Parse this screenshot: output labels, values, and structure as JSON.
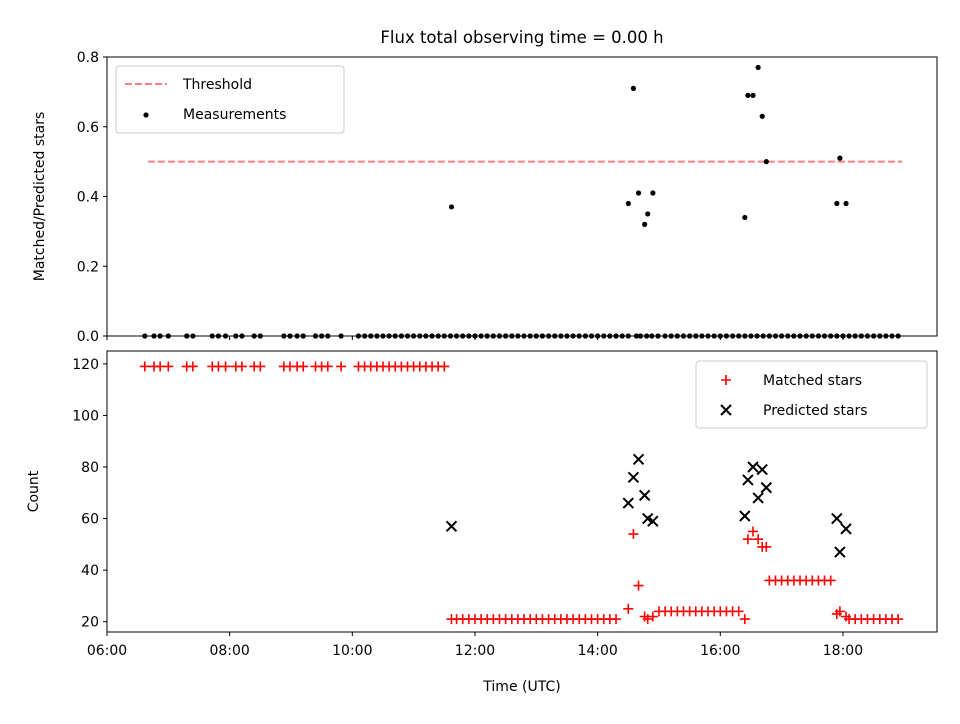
{
  "chart_data": [
    {
      "type": "scatter",
      "title": "Flux total observing time = 0.00 h",
      "xlabel": "",
      "ylabel": "Matched/Predicted stars",
      "ylim": [
        0,
        0.8
      ],
      "yticks": [
        "0.0",
        "0.2",
        "0.4",
        "0.6",
        "0.8"
      ],
      "legend": {
        "position": "top-left",
        "entries": [
          "Threshold",
          "Measurements"
        ]
      },
      "threshold": {
        "name": "Threshold",
        "value": 0.5,
        "x_start": "06:40",
        "x_end": "18:58",
        "color": "#ff7f7f"
      },
      "series": [
        {
          "name": "Measurements",
          "color": "#000000",
          "x": [
            "06:37",
            "06:46",
            "06:52",
            "07:00",
            "07:18",
            "07:24",
            "07:43",
            "07:49",
            "07:56",
            "08:06",
            "08:12",
            "08:24",
            "08:30",
            "08:53",
            "08:59",
            "09:06",
            "09:12",
            "09:24",
            "09:30",
            "09:36",
            "09:49",
            "10:06",
            "10:12",
            "10:18",
            "10:24",
            "10:30",
            "10:36",
            "10:42",
            "10:48",
            "10:54",
            "11:00",
            "11:06",
            "11:12",
            "11:18",
            "11:24",
            "11:30",
            "11:36",
            "11:42",
            "11:48",
            "11:54",
            "12:00",
            "12:06",
            "12:12",
            "12:18",
            "12:24",
            "12:30",
            "12:36",
            "12:42",
            "12:48",
            "12:54",
            "13:00",
            "13:06",
            "13:12",
            "13:18",
            "13:24",
            "13:30",
            "13:36",
            "13:42",
            "13:48",
            "13:54",
            "14:00",
            "14:06",
            "14:12",
            "14:18",
            "14:24",
            "14:30",
            "14:38",
            "14:42",
            "14:48",
            "14:53",
            "14:59",
            "15:06",
            "15:12",
            "15:18",
            "15:24",
            "15:30",
            "15:36",
            "15:42",
            "15:48",
            "15:54",
            "16:00",
            "16:06",
            "16:12",
            "16:18",
            "16:24",
            "16:30",
            "16:36",
            "16:42",
            "16:48",
            "16:54",
            "17:00",
            "17:06",
            "17:12",
            "17:18",
            "17:24",
            "17:30",
            "17:36",
            "17:42",
            "17:48",
            "17:54",
            "18:00",
            "18:06",
            "18:12",
            "18:18",
            "18:24",
            "18:30",
            "18:36",
            "18:42",
            "18:48",
            "18:54",
            "11:37",
            "14:30",
            "14:35",
            "14:40",
            "14:46",
            "14:49",
            "14:54",
            "16:24",
            "16:27",
            "16:32",
            "16:37",
            "16:41",
            "16:45",
            "17:54",
            "17:57",
            "18:03"
          ],
          "y": [
            0,
            0,
            0,
            0,
            0,
            0,
            0,
            0,
            0,
            0,
            0,
            0,
            0,
            0,
            0,
            0,
            0,
            0,
            0,
            0,
            0,
            0,
            0,
            0,
            0,
            0,
            0,
            0,
            0,
            0,
            0,
            0,
            0,
            0,
            0,
            0,
            0,
            0,
            0,
            0,
            0,
            0,
            0,
            0,
            0,
            0,
            0,
            0,
            0,
            0,
            0,
            0,
            0,
            0,
            0,
            0,
            0,
            0,
            0,
            0,
            0,
            0,
            0,
            0,
            0,
            0,
            0,
            0,
            0,
            0,
            0,
            0,
            0,
            0,
            0,
            0,
            0,
            0,
            0,
            0,
            0,
            0,
            0,
            0,
            0,
            0,
            0,
            0,
            0,
            0,
            0,
            0,
            0,
            0,
            0,
            0,
            0,
            0,
            0,
            0,
            0,
            0,
            0,
            0,
            0,
            0,
            0,
            0,
            0,
            0,
            0.37,
            0.38,
            0.71,
            0.41,
            0.32,
            0.35,
            0.41,
            0.34,
            0.69,
            0.69,
            0.77,
            0.63,
            0.5,
            0.38,
            0.51,
            0.38
          ]
        }
      ]
    },
    {
      "type": "scatter",
      "title": "",
      "xlabel": "Time (UTC)",
      "ylabel": "Count",
      "xlim": [
        "06:00",
        "19:32"
      ],
      "xticks": [
        "06:00",
        "08:00",
        "10:00",
        "12:00",
        "14:00",
        "16:00",
        "18:00"
      ],
      "ylim": [
        16,
        125
      ],
      "yticks": [
        "20",
        "40",
        "60",
        "80",
        "100",
        "120"
      ],
      "legend": {
        "position": "top-right",
        "entries": [
          "Matched stars",
          "Predicted stars"
        ]
      },
      "series": [
        {
          "name": "Matched stars",
          "color": "#ff0000",
          "marker": "+",
          "x": [
            "06:37",
            "06:46",
            "06:52",
            "07:00",
            "07:18",
            "07:24",
            "07:43",
            "07:49",
            "07:56",
            "08:06",
            "08:12",
            "08:24",
            "08:30",
            "08:53",
            "08:59",
            "09:06",
            "09:12",
            "09:24",
            "09:30",
            "09:36",
            "09:49",
            "10:06",
            "10:12",
            "10:18",
            "10:24",
            "10:30",
            "10:36",
            "10:42",
            "10:48",
            "10:54",
            "11:00",
            "11:06",
            "11:12",
            "11:18",
            "11:24",
            "11:30",
            "11:37",
            "11:42",
            "11:48",
            "11:54",
            "12:00",
            "12:06",
            "12:12",
            "12:18",
            "12:24",
            "12:30",
            "12:36",
            "12:42",
            "12:48",
            "12:54",
            "13:00",
            "13:06",
            "13:12",
            "13:18",
            "13:24",
            "13:30",
            "13:36",
            "13:42",
            "13:48",
            "13:54",
            "14:00",
            "14:06",
            "14:12",
            "14:18",
            "14:30",
            "14:35",
            "14:40",
            "14:46",
            "14:49",
            "14:54",
            "15:00",
            "15:06",
            "15:12",
            "15:18",
            "15:24",
            "15:30",
            "15:36",
            "15:42",
            "15:48",
            "15:54",
            "16:00",
            "16:06",
            "16:12",
            "16:18",
            "16:24",
            "16:27",
            "16:32",
            "16:37",
            "16:41",
            "16:45",
            "16:48",
            "16:54",
            "17:00",
            "17:06",
            "17:12",
            "17:18",
            "17:24",
            "17:30",
            "17:36",
            "17:42",
            "17:48",
            "17:54",
            "17:57",
            "18:03",
            "18:06",
            "18:12",
            "18:18",
            "18:24",
            "18:30",
            "18:36",
            "18:42",
            "18:48",
            "18:54"
          ],
          "y": [
            119,
            119,
            119,
            119,
            119,
            119,
            119,
            119,
            119,
            119,
            119,
            119,
            119,
            119,
            119,
            119,
            119,
            119,
            119,
            119,
            119,
            119,
            119,
            119,
            119,
            119,
            119,
            119,
            119,
            119,
            119,
            119,
            119,
            119,
            119,
            119,
            21,
            21,
            21,
            21,
            21,
            21,
            21,
            21,
            21,
            21,
            21,
            21,
            21,
            21,
            21,
            21,
            21,
            21,
            21,
            21,
            21,
            21,
            21,
            21,
            21,
            21,
            21,
            21,
            25,
            54,
            34,
            22,
            21,
            22,
            24,
            24,
            24,
            24,
            24,
            24,
            24,
            24,
            24,
            24,
            24,
            24,
            24,
            24,
            21,
            52,
            55,
            52,
            49,
            49,
            36,
            36,
            36,
            36,
            36,
            36,
            36,
            36,
            36,
            36,
            36,
            23,
            24,
            22,
            21,
            21,
            21,
            21,
            21,
            21,
            21,
            21,
            21
          ]
        },
        {
          "name": "Predicted stars",
          "color": "#000000",
          "marker": "x",
          "x": [
            "11:37",
            "14:30",
            "14:35",
            "14:40",
            "14:46",
            "14:49",
            "14:54",
            "16:24",
            "16:27",
            "16:32",
            "16:37",
            "16:41",
            "16:45",
            "17:54",
            "17:57",
            "18:03"
          ],
          "y": [
            57,
            66,
            76,
            83,
            69,
            60,
            59,
            61,
            75,
            80,
            68,
            79,
            72,
            60,
            47,
            56
          ]
        }
      ]
    }
  ]
}
